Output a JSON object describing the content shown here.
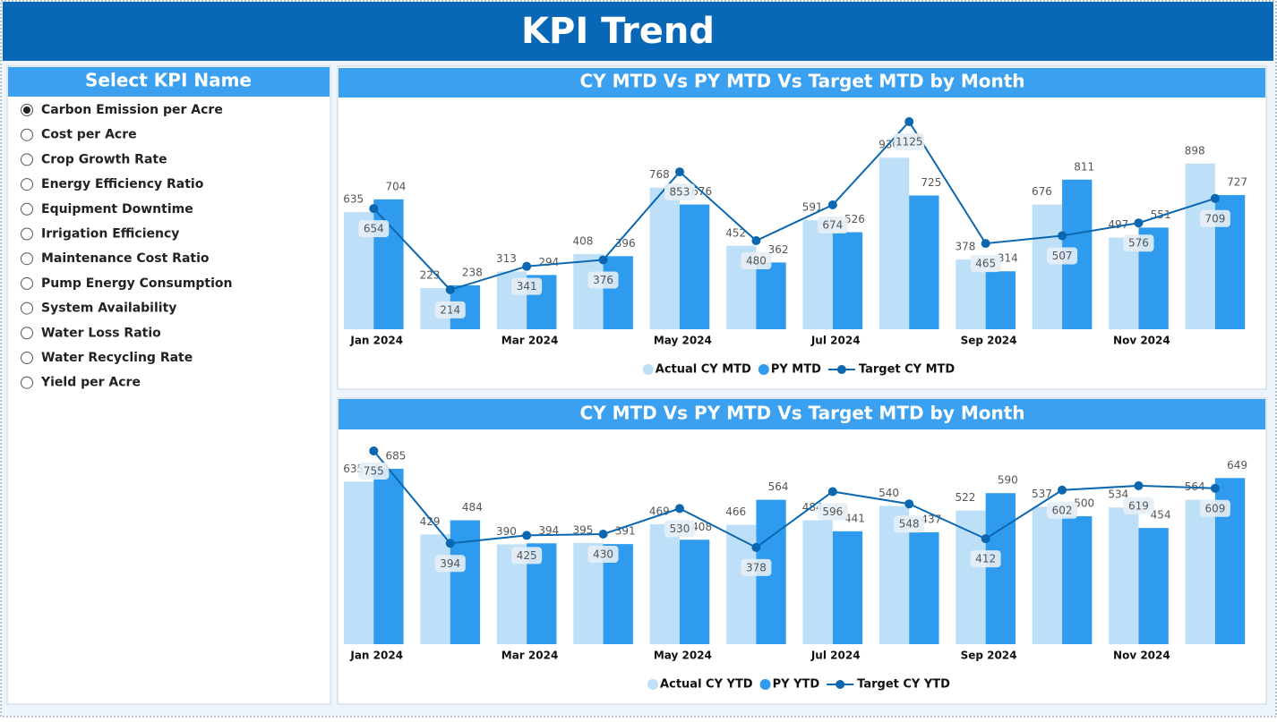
{
  "header": {
    "title": "KPI Trend"
  },
  "slicer": {
    "title": "Select KPI Name",
    "selected": 0,
    "items": [
      "Carbon Emission per Acre",
      "Cost per Acre",
      "Crop Growth Rate",
      "Energy Efficiency Ratio",
      "Equipment Downtime",
      "Irrigation Efficiency",
      "Maintenance Cost Ratio",
      "Pump Energy Consumption",
      "System Availability",
      "Water Loss Ratio",
      "Water Recycling Rate",
      "Yield per Acre"
    ]
  },
  "chart_data": [
    {
      "type": "combo",
      "title": "CY MTD Vs PY MTD Vs Target MTD by Month",
      "categories": [
        "Jan 2024",
        null,
        "Mar 2024",
        null,
        "May 2024",
        null,
        "Jul 2024",
        null,
        "Sep 2024",
        null,
        "Nov 2024",
        null
      ],
      "series": [
        {
          "name": "Actual CY MTD",
          "type": "bar",
          "color": "#bde0f8",
          "values": [
            635,
            223,
            313,
            408,
            768,
            452,
            591,
            930,
            378,
            676,
            497,
            898
          ]
        },
        {
          "name": "PY MTD",
          "type": "bar",
          "color": "#2f9bee",
          "values": [
            704,
            238,
            294,
            396,
            676,
            362,
            526,
            725,
            314,
            811,
            551,
            727
          ]
        },
        {
          "name": "Target CY MTD",
          "type": "line",
          "color": "#0b67b0",
          "values": [
            654,
            214,
            341,
            376,
            853,
            480,
            674,
            1125,
            465,
            507,
            576,
            709
          ]
        }
      ]
    },
    {
      "type": "combo",
      "title": "CY MTD Vs PY MTD Vs Target MTD by Month",
      "categories": [
        "Jan 2024",
        null,
        "Mar 2024",
        null,
        "May 2024",
        null,
        "Jul 2024",
        null,
        "Sep 2024",
        null,
        "Nov 2024",
        null
      ],
      "series": [
        {
          "name": "Actual CY YTD",
          "type": "bar",
          "color": "#bde0f8",
          "values": [
            635,
            429,
            390,
            395,
            469,
            466,
            484,
            540,
            522,
            537,
            534,
            564
          ]
        },
        {
          "name": "PY YTD",
          "type": "bar",
          "color": "#2f9bee",
          "values": [
            685,
            484,
            394,
            391,
            408,
            564,
            441,
            437,
            590,
            500,
            454,
            649
          ]
        },
        {
          "name": "Target CY YTD",
          "type": "line",
          "color": "#0b67b0",
          "values": [
            755,
            394,
            425,
            430,
            530,
            378,
            596,
            548,
            412,
            602,
            619,
            609
          ]
        }
      ]
    }
  ]
}
